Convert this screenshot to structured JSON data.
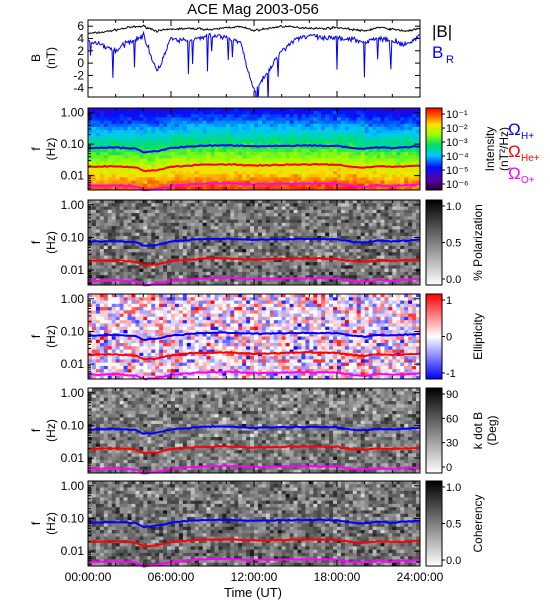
{
  "title": "ACE Mag 2003-056",
  "colors": {
    "B_total": "#000000",
    "B_R": "#0000ff",
    "H_plus": "#0000ff",
    "He_plus": "#ff0000",
    "O_plus": "#ff00ff"
  },
  "time_axis": {
    "label": "Time (UT)",
    "ticks": [
      "00:00:00",
      "06:00:00",
      "12:00:00",
      "18:00:00",
      "24:00:00"
    ],
    "range_hours": [
      0,
      24
    ]
  },
  "chart_data": [
    {
      "type": "line",
      "name": "magnetic-field-panel",
      "ylabel": "B",
      "yunit": "(nT)",
      "ylim": [
        -5.5,
        7
      ],
      "yticks": [
        -4,
        -2,
        0,
        2,
        4,
        6
      ],
      "legend": [
        {
          "label": "|B|",
          "color": "#000000"
        },
        {
          "label": "B",
          "sub": "R",
          "color": "#0000ff"
        }
      ],
      "series": [
        {
          "name": "|B|",
          "x_hours": [
            0,
            1,
            2,
            3,
            4,
            5,
            6,
            7,
            8,
            9,
            10,
            11,
            12,
            13,
            14,
            15,
            16,
            17,
            18,
            19,
            20,
            21,
            22,
            23,
            24
          ],
          "values": [
            4.8,
            5.0,
            5.4,
            5.8,
            6.0,
            5.2,
            5.5,
            5.6,
            5.6,
            5.4,
            5.8,
            5.9,
            5.3,
            5.6,
            6.0,
            5.8,
            5.7,
            5.6,
            5.8,
            5.5,
            5.2,
            5.8,
            5.5,
            5.2,
            5.6
          ]
        },
        {
          "name": "B",
          "x_hours": [
            0,
            1,
            2,
            3,
            4,
            5,
            6,
            7,
            8,
            9,
            10,
            11,
            12,
            13,
            14,
            15,
            16,
            17,
            18,
            19,
            20,
            21,
            22,
            23,
            24
          ],
          "values": [
            3.5,
            3.0,
            2.0,
            3.5,
            4.5,
            -1.5,
            4.0,
            3.5,
            4.0,
            4.5,
            4.0,
            3.5,
            -4.5,
            -1.5,
            2.0,
            4.0,
            4.5,
            4.0,
            4.0,
            4.0,
            3.5,
            4.0,
            3.5,
            3.0,
            4.5
          ]
        }
      ]
    },
    {
      "type": "heatmap",
      "name": "intensity-spectrogram",
      "ylabel": "f",
      "yunit": "(Hz)",
      "yscale": "log",
      "yticks": [
        "1.00",
        "0.10",
        "0.01"
      ],
      "colorbar": {
        "label": "Intensity",
        "unit": "(nT²/Hz)",
        "ticks": [
          "10⁻¹",
          "10⁻²",
          "10⁻³",
          "10⁻⁴",
          "10⁻⁵",
          "10⁻⁶"
        ],
        "colormap": "rainbow"
      },
      "cyclotron_legend": [
        {
          "symbol": "Ω",
          "sub": "H+",
          "color": "#0000ff"
        },
        {
          "symbol": "Ω",
          "sub": "He+",
          "color": "#ff0000"
        },
        {
          "symbol": "Ω",
          "sub": "O+",
          "color": "#ff00ff"
        }
      ]
    },
    {
      "type": "heatmap",
      "name": "polarization-spectrogram",
      "ylabel": "f",
      "yunit": "(Hz)",
      "yscale": "log",
      "yticks": [
        "1.00",
        "0.10",
        "0.01"
      ],
      "colorbar": {
        "label": "% Polarization",
        "ticks": [
          "1.0",
          "0.5",
          "0.0"
        ],
        "colormap": "grayscale"
      }
    },
    {
      "type": "heatmap",
      "name": "ellipticity-spectrogram",
      "ylabel": "f",
      "yunit": "(Hz)",
      "yscale": "log",
      "yticks": [
        "1.00",
        "0.10",
        "0.01"
      ],
      "colorbar": {
        "label": "Ellipticity",
        "ticks": [
          "1",
          "0",
          "-1"
        ],
        "colormap": "blue-white-red"
      }
    },
    {
      "type": "heatmap",
      "name": "k-dot-b-spectrogram",
      "ylabel": "f",
      "yunit": "(Hz)",
      "yscale": "log",
      "yticks": [
        "1.00",
        "0.10",
        "0.01"
      ],
      "colorbar": {
        "label": "k dot B",
        "unit": "(Deg)",
        "ticks": [
          "90",
          "60",
          "30",
          "0"
        ],
        "colormap": "grayscale"
      }
    },
    {
      "type": "heatmap",
      "name": "coherency-spectrogram",
      "ylabel": "f",
      "yunit": "(Hz)",
      "yscale": "log",
      "yticks": [
        "1.00",
        "0.10",
        "0.01"
      ],
      "colorbar": {
        "label": "Coherency",
        "ticks": [
          "1.0",
          "0.5",
          "0.0"
        ],
        "colormap": "grayscale"
      }
    }
  ],
  "cyclotron_frequencies_hz": {
    "x_hours": [
      0,
      2,
      3.5,
      4,
      5,
      6,
      8,
      10,
      12,
      14,
      16,
      18,
      19,
      20,
      21,
      22,
      24
    ],
    "H_plus": [
      0.075,
      0.078,
      0.072,
      0.055,
      0.06,
      0.075,
      0.088,
      0.092,
      0.085,
      0.088,
      0.09,
      0.088,
      0.075,
      0.07,
      0.08,
      0.075,
      0.085
    ],
    "He_plus": [
      0.019,
      0.02,
      0.018,
      0.014,
      0.015,
      0.019,
      0.022,
      0.023,
      0.021,
      0.022,
      0.023,
      0.022,
      0.019,
      0.018,
      0.02,
      0.019,
      0.021
    ],
    "O_plus": [
      0.0047,
      0.0049,
      0.0045,
      0.0034,
      0.0038,
      0.0047,
      0.0055,
      0.0058,
      0.0053,
      0.0055,
      0.0056,
      0.0055,
      0.0047,
      0.0044,
      0.005,
      0.0047,
      0.0053
    ]
  }
}
